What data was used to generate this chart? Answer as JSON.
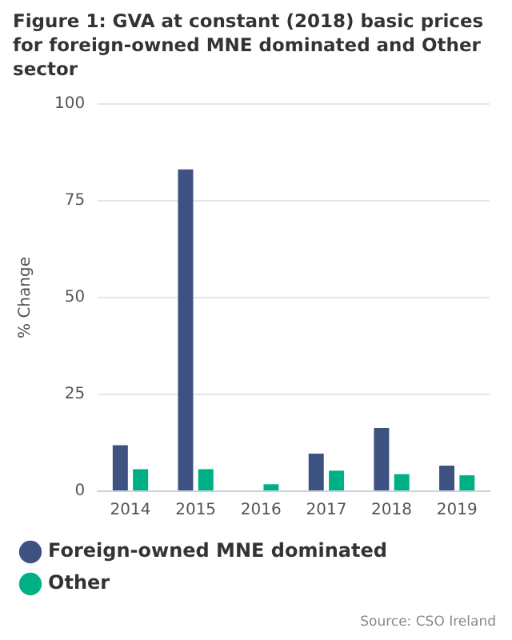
{
  "chart_data": {
    "type": "bar",
    "title": "Figure 1: GVA at constant (2018) basic prices for foreign-owned MNE dominated and Other sector",
    "ylabel": "% Change",
    "categories": [
      "2014",
      "2015",
      "2016",
      "2017",
      "2018",
      "2019"
    ],
    "series": [
      {
        "name": "Foreign-owned MNE dominated",
        "color": "#3d5280",
        "values": [
          11.9,
          83.1,
          0,
          9.7,
          16.3,
          6.6
        ]
      },
      {
        "name": "Other",
        "color": "#00b085",
        "values": [
          5.7,
          5.7,
          1.8,
          5.3,
          4.4,
          4.1
        ]
      }
    ],
    "ylim": [
      0,
      100
    ],
    "yticks": [
      0,
      25,
      50,
      75,
      100
    ],
    "grid": "y",
    "legend": "bottom",
    "annotations": [
      "Source: CSO Ireland"
    ]
  }
}
